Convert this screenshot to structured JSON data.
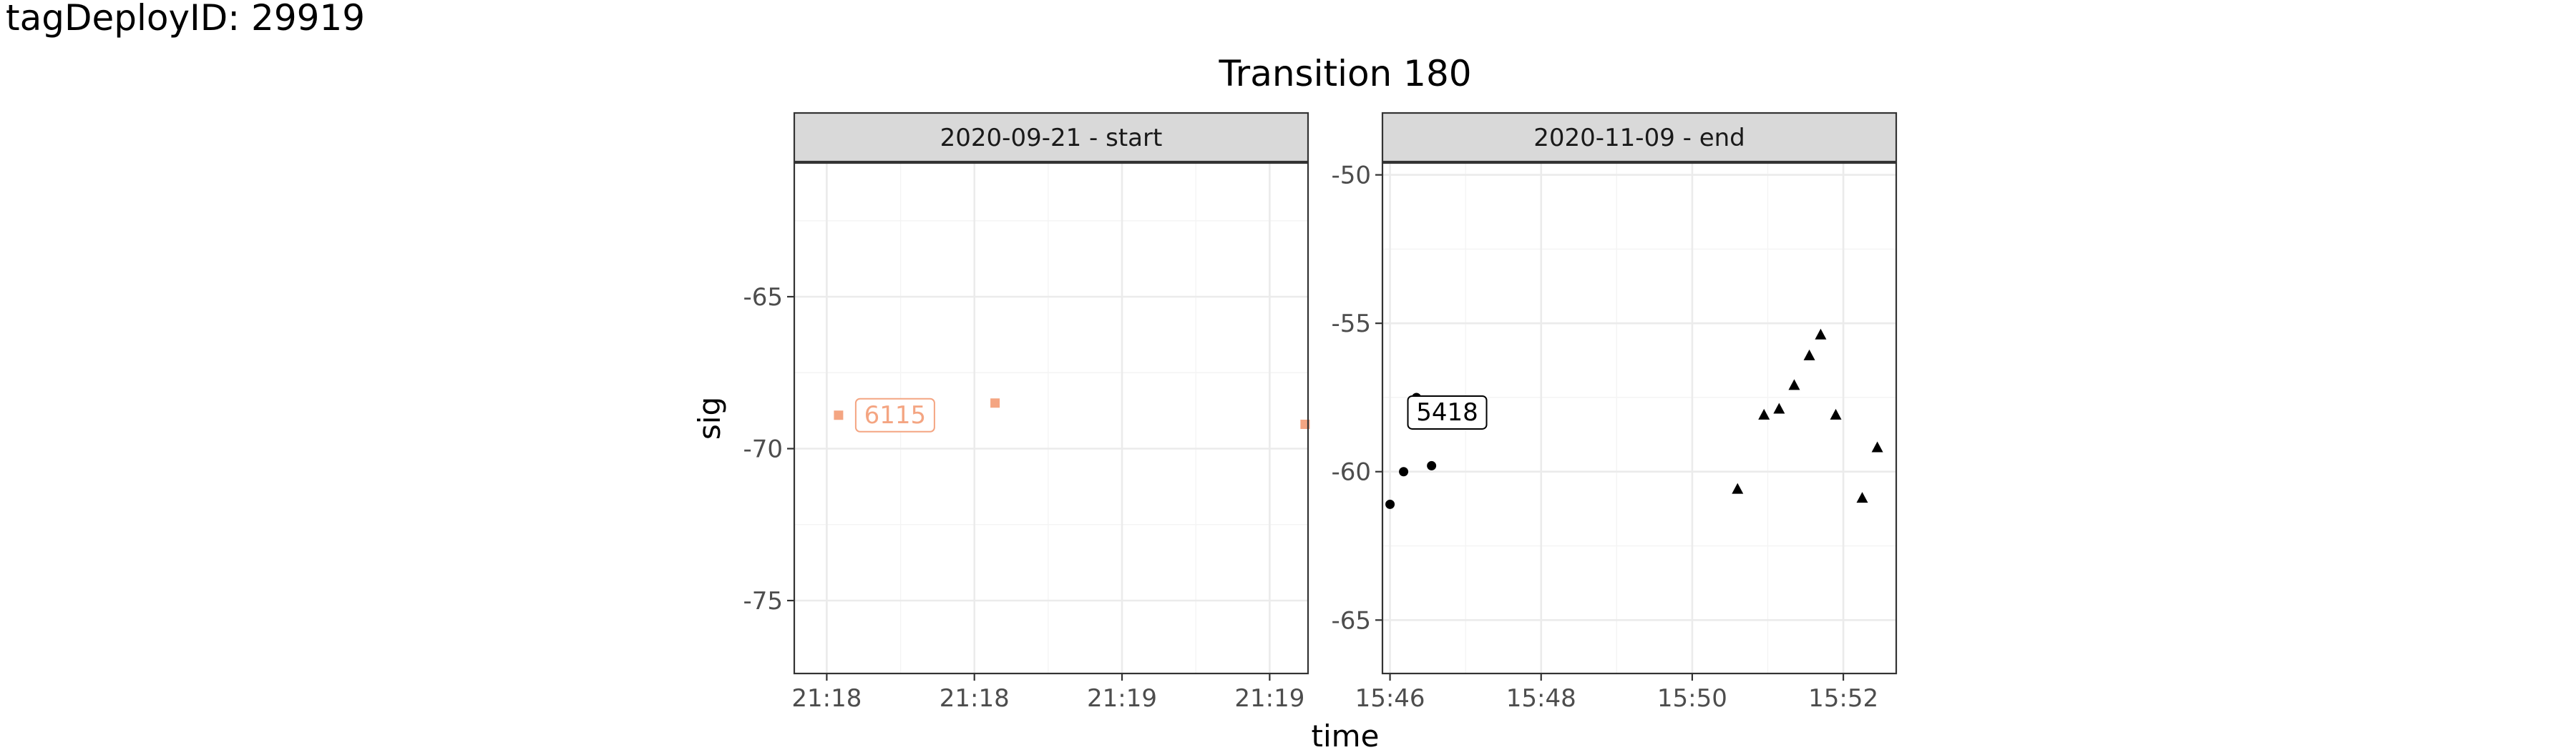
{
  "header": {
    "tag_deploy": "tagDeployID: 29919"
  },
  "chart_data": {
    "type": "scatter",
    "title": "Transition 180",
    "xlabel": "time",
    "ylabel": "sig",
    "grid": true,
    "panels": [
      {
        "strip": "2020-09-21 - start",
        "ylim": [
          -77.4,
          -60.6
        ],
        "yticks": [
          -65,
          -70,
          -75
        ],
        "xlim": [
          -0.11,
          1.63
        ],
        "xticks": [
          0,
          0.5,
          1.0,
          1.5
        ],
        "xtick_labels": [
          "21:18",
          "21:18",
          "21:19",
          "21:19"
        ],
        "series": [
          {
            "name": "6115",
            "shape": "square",
            "color": "#f4a582",
            "points": [
              {
                "x": 0.04,
                "y": -68.9
              },
              {
                "x": 0.57,
                "y": -68.5
              },
              {
                "x": 1.62,
                "y": -69.2
              }
            ],
            "label": {
              "text": "6115",
              "x": 0.04,
              "y": -68.9
            }
          }
        ]
      },
      {
        "strip": "2020-11-09 - end",
        "ylim": [
          -66.8,
          -49.6
        ],
        "yticks": [
          -50,
          -55,
          -60,
          -65
        ],
        "xlim": [
          -0.1,
          6.7
        ],
        "xticks": [
          0,
          2,
          4,
          6
        ],
        "xtick_labels": [
          "15:46",
          "15:48",
          "15:50",
          "15:52"
        ],
        "series": [
          {
            "name": "5418",
            "shape": "circle",
            "color": "#000000",
            "points": [
              {
                "x": 0.0,
                "y": -61.1
              },
              {
                "x": 0.18,
                "y": -60.0
              },
              {
                "x": 0.35,
                "y": -57.5
              },
              {
                "x": 0.55,
                "y": -59.8
              }
            ],
            "label": {
              "text": "5418",
              "x": 0.35,
              "y": -57.5
            }
          },
          {
            "shape": "triangle",
            "color": "#000000",
            "points": [
              {
                "x": 4.6,
                "y": -60.6
              },
              {
                "x": 4.95,
                "y": -58.1
              },
              {
                "x": 5.15,
                "y": -57.9
              },
              {
                "x": 5.35,
                "y": -57.1
              },
              {
                "x": 5.55,
                "y": -56.1
              },
              {
                "x": 5.7,
                "y": -55.4
              },
              {
                "x": 5.9,
                "y": -58.1
              },
              {
                "x": 6.25,
                "y": -60.9
              },
              {
                "x": 6.45,
                "y": -59.2
              }
            ]
          }
        ]
      }
    ]
  }
}
